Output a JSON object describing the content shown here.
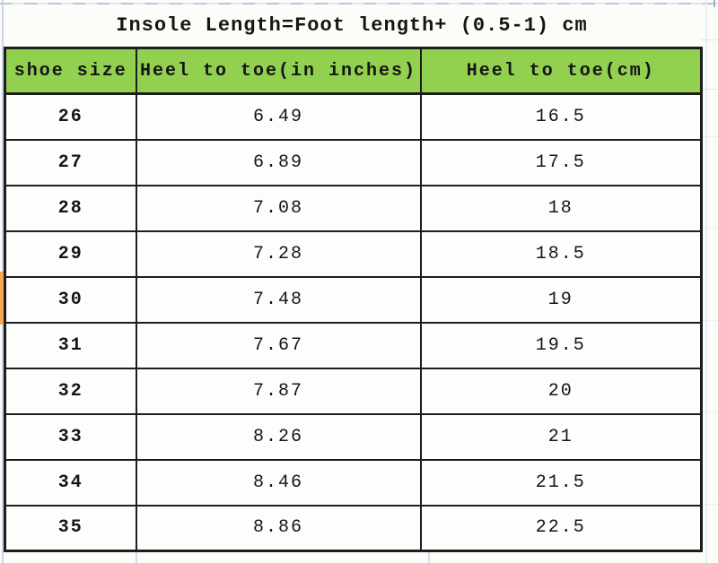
{
  "title": "Insole Length=Foot length+ (0.5-1) cm",
  "size_chart": {
    "columns": [
      "shoe size",
      "Heel to toe(in inches)",
      "Heel to toe(cm)"
    ],
    "rows": [
      [
        "26",
        "6.49",
        "16.5"
      ],
      [
        "27",
        "6.89",
        "17.5"
      ],
      [
        "28",
        "7.08",
        "18"
      ],
      [
        "29",
        "7.28",
        "18.5"
      ],
      [
        "30",
        "7.48",
        "19"
      ],
      [
        "31",
        "7.67",
        "19.5"
      ],
      [
        "32",
        "7.87",
        "20"
      ],
      [
        "33",
        "8.26",
        "21"
      ],
      [
        "34",
        "8.46",
        "21.5"
      ],
      [
        "35",
        "8.86",
        "22.5"
      ]
    ]
  },
  "chart_data": {
    "type": "table",
    "title": "Insole Length=Foot length+ (0.5-1) cm",
    "columns": [
      "shoe size",
      "Heel to toe(in inches)",
      "Heel to toe(cm)"
    ],
    "rows": [
      [
        26,
        6.49,
        16.5
      ],
      [
        27,
        6.89,
        17.5
      ],
      [
        28,
        7.08,
        18
      ],
      [
        29,
        7.28,
        18.5
      ],
      [
        30,
        7.48,
        19
      ],
      [
        31,
        7.67,
        19.5
      ],
      [
        32,
        7.87,
        20
      ],
      [
        33,
        8.26,
        21
      ],
      [
        34,
        8.46,
        21.5
      ],
      [
        35,
        8.86,
        22.5
      ]
    ]
  },
  "colors": {
    "header_bg": "#92d050",
    "table_border": "#1d1d1b",
    "page_bg": "#fcfcf9",
    "gridline": "#c9d4e4",
    "highlight_strip": "#f4ab52"
  }
}
